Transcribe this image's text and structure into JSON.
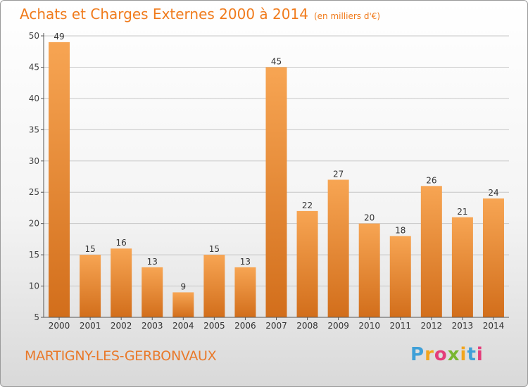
{
  "page_title": "Achats et Charges Externes 2000 à 2014",
  "page_subtitle": "(en milliers d'€)",
  "place_name": "MARTIGNY-LES-GERBONVAUX",
  "logo": {
    "letters": [
      "P",
      "r",
      "o",
      "x",
      "i",
      "t",
      "i"
    ],
    "colors": [
      "#3fa0d8",
      "#f2a51d",
      "#e43d7a",
      "#79b631",
      "#f2a51d",
      "#3fa0d8",
      "#e43d7a"
    ]
  },
  "colors": {
    "accent": "#f07b1c",
    "bar_top": "#f7a553",
    "bar_bottom": "#d26e1b",
    "grid": "#c6c6c6",
    "axis": "#555555"
  },
  "chart_data": {
    "type": "bar",
    "title": "Achats et Charges Externes 2000 à 2014",
    "subtitle": "(en milliers d'€)",
    "categories": [
      "2000",
      "2001",
      "2002",
      "2003",
      "2004",
      "2005",
      "2006",
      "2007",
      "2008",
      "2009",
      "2010",
      "2011",
      "2012",
      "2013",
      "2014"
    ],
    "values": [
      49,
      15,
      16,
      13,
      9,
      15,
      13,
      45,
      22,
      27,
      20,
      18,
      26,
      21,
      24
    ],
    "ylim": [
      5,
      50
    ],
    "yticks": [
      5,
      10,
      15,
      20,
      25,
      30,
      35,
      40,
      45,
      50
    ],
    "grid": true,
    "data_labels": true,
    "xlabel": "",
    "ylabel": ""
  }
}
